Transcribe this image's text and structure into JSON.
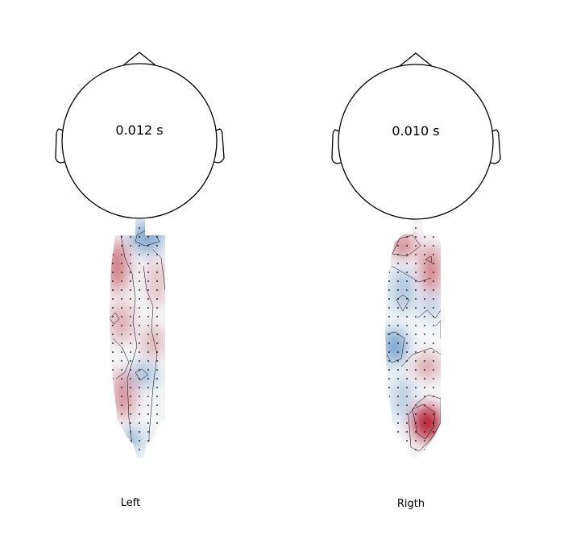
{
  "panels": [
    {
      "time_label": "0.012 s",
      "caption": "Left",
      "blobs": [
        {
          "level": 0.55
        },
        {
          "level": 0.35
        },
        {
          "level": -0.5
        },
        {
          "level": -0.35
        },
        {
          "level": 0.45
        },
        {
          "level": -0.45
        },
        {
          "level": 0.3
        },
        {
          "level": 0.35
        }
      ]
    },
    {
      "time_label": "0.010 s",
      "caption": "Rigth",
      "blobs": [
        {
          "level": 0.5
        },
        {
          "level": -0.35
        },
        {
          "level": -0.6
        },
        {
          "level": 0.4
        },
        {
          "level": -0.3
        },
        {
          "level": 0.95
        },
        {
          "level": 0.55
        },
        {
          "level": -0.3
        }
      ]
    }
  ],
  "colors": {
    "positive": "#b2182b",
    "negative": "#2166ac",
    "outline": "#000000"
  }
}
